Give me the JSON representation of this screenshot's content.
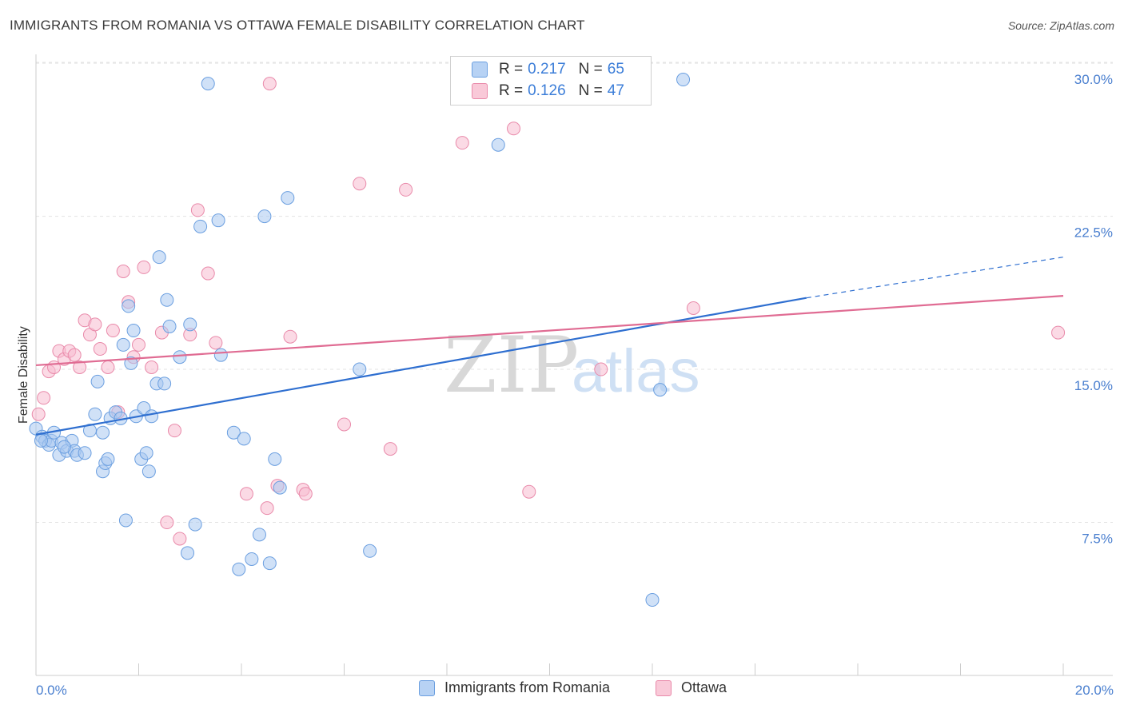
{
  "title": "IMMIGRANTS FROM ROMANIA VS OTTAWA FEMALE DISABILITY CORRELATION CHART",
  "source": "Source: ZipAtlas.com",
  "watermark": {
    "zip": "ZIP",
    "atlas": "atlas"
  },
  "legend": {
    "rows": [
      {
        "r_label": "R =",
        "r_value": "0.217",
        "n_label": "N =",
        "n_value": "65"
      },
      {
        "r_label": "R =",
        "r_value": "0.126",
        "n_label": "N =",
        "n_value": "47"
      }
    ]
  },
  "bottom_legend": [
    "Immigrants from Romania",
    "Ottawa"
  ],
  "colors": {
    "blue_fill": "#a9c8f0",
    "blue_stroke": "#6b9fe0",
    "blue_line": "#2f6fd0",
    "pink_fill": "#f7bcd0",
    "pink_stroke": "#e98aaa",
    "pink_line": "#e06c93",
    "tick": "#4a7fcf",
    "grid": "#e3e3e3"
  },
  "chart_data": {
    "type": "scatter",
    "title": "IMMIGRANTS FROM ROMANIA VS OTTAWA FEMALE DISABILITY CORRELATION CHART",
    "xlabel": "",
    "ylabel": "Female Disability",
    "xlim": [
      0,
      20
    ],
    "ylim": [
      0,
      31
    ],
    "x_ticks": [
      "0.0%",
      "20.0%"
    ],
    "y_ticks": [
      {
        "value": 7.5,
        "label": "7.5%"
      },
      {
        "value": 15.0,
        "label": "15.0%"
      },
      {
        "value": 22.5,
        "label": "22.5%"
      },
      {
        "value": 30.0,
        "label": "30.0%"
      }
    ],
    "series": [
      {
        "name": "Immigrants from Romania",
        "r": 0.217,
        "n": 65,
        "trend": {
          "x0": 0,
          "y0": 11.8,
          "x1": 15.0,
          "y1": 18.5,
          "x_dash_end": 20.0,
          "y_dash_end": 20.5
        },
        "points": [
          [
            0.0,
            12.1
          ],
          [
            0.12,
            11.7
          ],
          [
            0.18,
            11.5
          ],
          [
            0.25,
            11.3
          ],
          [
            0.3,
            11.5
          ],
          [
            0.35,
            11.9
          ],
          [
            0.45,
            10.8
          ],
          [
            0.5,
            11.4
          ],
          [
            0.6,
            11.0
          ],
          [
            0.7,
            11.5
          ],
          [
            0.75,
            11.0
          ],
          [
            0.8,
            10.8
          ],
          [
            0.95,
            10.9
          ],
          [
            1.05,
            12.0
          ],
          [
            1.15,
            12.8
          ],
          [
            1.3,
            11.9
          ],
          [
            1.2,
            14.4
          ],
          [
            1.3,
            10.0
          ],
          [
            1.35,
            10.4
          ],
          [
            1.4,
            10.6
          ],
          [
            1.45,
            12.6
          ],
          [
            1.55,
            12.9
          ],
          [
            1.65,
            12.6
          ],
          [
            1.7,
            16.2
          ],
          [
            1.75,
            7.6
          ],
          [
            1.8,
            18.1
          ],
          [
            1.85,
            15.3
          ],
          [
            1.9,
            16.9
          ],
          [
            1.95,
            12.7
          ],
          [
            2.05,
            10.6
          ],
          [
            2.1,
            13.1
          ],
          [
            2.15,
            10.9
          ],
          [
            2.2,
            10.0
          ],
          [
            2.25,
            12.7
          ],
          [
            2.35,
            14.3
          ],
          [
            2.4,
            20.5
          ],
          [
            2.5,
            14.3
          ],
          [
            2.55,
            18.4
          ],
          [
            2.6,
            17.1
          ],
          [
            2.8,
            15.6
          ],
          [
            2.95,
            6.0
          ],
          [
            3.0,
            17.2
          ],
          [
            3.1,
            7.4
          ],
          [
            3.2,
            22.0
          ],
          [
            3.35,
            29.0
          ],
          [
            3.55,
            22.3
          ],
          [
            3.6,
            15.7
          ],
          [
            3.85,
            11.9
          ],
          [
            3.95,
            5.2
          ],
          [
            4.05,
            11.6
          ],
          [
            4.2,
            5.7
          ],
          [
            4.35,
            6.9
          ],
          [
            4.45,
            22.5
          ],
          [
            4.55,
            5.5
          ],
          [
            4.65,
            10.6
          ],
          [
            4.75,
            9.2
          ],
          [
            4.9,
            23.4
          ],
          [
            6.3,
            15.0
          ],
          [
            6.5,
            6.1
          ],
          [
            9.0,
            26.0
          ],
          [
            12.0,
            3.7
          ],
          [
            12.15,
            14.0
          ],
          [
            12.6,
            29.2
          ],
          [
            0.1,
            11.5
          ],
          [
            0.55,
            11.2
          ]
        ]
      },
      {
        "name": "Ottawa",
        "r": 0.126,
        "n": 47,
        "trend": {
          "x0": 0,
          "y0": 15.2,
          "x1": 20.0,
          "y1": 18.6
        },
        "points": [
          [
            0.05,
            12.8
          ],
          [
            0.15,
            13.6
          ],
          [
            0.25,
            14.9
          ],
          [
            0.35,
            15.1
          ],
          [
            0.45,
            15.9
          ],
          [
            0.55,
            15.5
          ],
          [
            0.65,
            15.9
          ],
          [
            0.75,
            15.7
          ],
          [
            0.85,
            15.1
          ],
          [
            0.95,
            17.4
          ],
          [
            1.05,
            16.7
          ],
          [
            1.15,
            17.2
          ],
          [
            1.25,
            16.0
          ],
          [
            1.4,
            15.1
          ],
          [
            1.5,
            16.9
          ],
          [
            1.6,
            12.9
          ],
          [
            1.7,
            19.8
          ],
          [
            1.8,
            18.3
          ],
          [
            1.9,
            15.6
          ],
          [
            2.0,
            16.2
          ],
          [
            2.1,
            20.0
          ],
          [
            2.25,
            15.1
          ],
          [
            2.45,
            16.8
          ],
          [
            2.55,
            7.5
          ],
          [
            2.7,
            12.0
          ],
          [
            2.8,
            6.7
          ],
          [
            3.0,
            16.7
          ],
          [
            3.15,
            22.8
          ],
          [
            3.35,
            19.7
          ],
          [
            3.5,
            16.3
          ],
          [
            4.1,
            8.9
          ],
          [
            4.5,
            8.2
          ],
          [
            4.55,
            29.0
          ],
          [
            4.7,
            9.3
          ],
          [
            4.95,
            16.6
          ],
          [
            5.2,
            9.1
          ],
          [
            5.25,
            8.9
          ],
          [
            6.0,
            12.3
          ],
          [
            6.3,
            24.1
          ],
          [
            6.9,
            11.1
          ],
          [
            7.2,
            23.8
          ],
          [
            8.3,
            26.1
          ],
          [
            9.3,
            26.8
          ],
          [
            9.6,
            9.0
          ],
          [
            11.0,
            15.0
          ],
          [
            12.8,
            18.0
          ],
          [
            19.9,
            16.8
          ]
        ]
      }
    ]
  }
}
